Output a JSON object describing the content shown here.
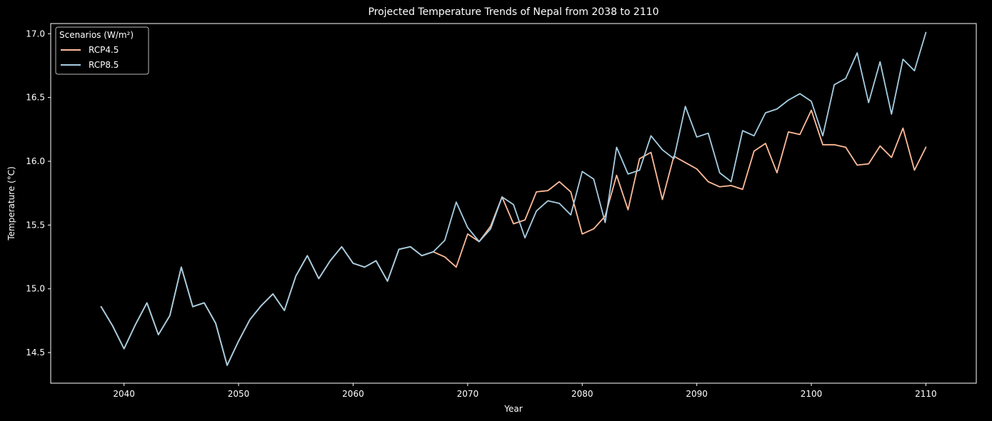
{
  "chart_data": {
    "type": "line",
    "title": "Projected Temperature Trends of Nepal from 2038 to 2110",
    "xlabel": "Year",
    "ylabel": "Temperature (°C)",
    "xlim": [
      2033.6,
      2114.4
    ],
    "ylim": [
      14.26,
      17.08
    ],
    "xticks": [
      2040,
      2050,
      2060,
      2070,
      2080,
      2090,
      2100,
      2110
    ],
    "xtick_labels": [
      "2040",
      "2050",
      "2060",
      "2070",
      "2080",
      "2090",
      "2100",
      "2110"
    ],
    "yticks": [
      14.5,
      15.0,
      15.5,
      16.0,
      16.5,
      17.0
    ],
    "ytick_labels": [
      "14.5",
      "15.0",
      "15.5",
      "16.0",
      "16.5",
      "17.0"
    ],
    "grid": false,
    "legend": {
      "title": "Scenarios (W/m²)",
      "placement": "top-left"
    },
    "background": "#000000",
    "x": [
      2038,
      2039,
      2040,
      2041,
      2042,
      2043,
      2044,
      2045,
      2046,
      2047,
      2048,
      2049,
      2050,
      2051,
      2052,
      2053,
      2054,
      2055,
      2056,
      2057,
      2058,
      2059,
      2060,
      2061,
      2062,
      2063,
      2064,
      2065,
      2066,
      2067,
      2068,
      2069,
      2070,
      2071,
      2072,
      2073,
      2074,
      2075,
      2076,
      2077,
      2078,
      2079,
      2080,
      2081,
      2082,
      2083,
      2084,
      2085,
      2086,
      2087,
      2088,
      2089,
      2090,
      2091,
      2092,
      2093,
      2094,
      2095,
      2096,
      2097,
      2098,
      2099,
      2100,
      2101,
      2102,
      2103,
      2104,
      2105,
      2106,
      2107,
      2108,
      2109,
      2110
    ],
    "series": [
      {
        "name": "RCP4.5",
        "color": "#ffbb99",
        "values": [
          14.86,
          14.71,
          14.53,
          14.72,
          14.89,
          14.64,
          14.79,
          15.17,
          14.86,
          14.89,
          14.73,
          14.4,
          14.59,
          14.76,
          14.87,
          14.96,
          14.83,
          15.1,
          15.26,
          15.08,
          15.22,
          15.33,
          15.2,
          15.17,
          15.22,
          15.06,
          15.31,
          15.33,
          15.26,
          15.29,
          15.25,
          15.17,
          15.43,
          15.37,
          15.49,
          15.72,
          15.51,
          15.54,
          15.76,
          15.77,
          15.84,
          15.76,
          15.43,
          15.47,
          15.57,
          15.89,
          15.62,
          16.02,
          16.07,
          15.7,
          16.04,
          15.99,
          15.94,
          15.84,
          15.8,
          15.81,
          15.78,
          16.08,
          16.14,
          15.91,
          16.23,
          16.21,
          16.4,
          16.13,
          16.13,
          16.11,
          15.97,
          15.98,
          16.12,
          16.03,
          16.26,
          15.93,
          16.11
        ]
      },
      {
        "name": "RCP8.5",
        "color": "#a6cee3",
        "values": [
          14.86,
          14.71,
          14.53,
          14.72,
          14.89,
          14.64,
          14.79,
          15.17,
          14.86,
          14.89,
          14.73,
          14.4,
          14.59,
          14.76,
          14.87,
          14.96,
          14.83,
          15.1,
          15.26,
          15.08,
          15.22,
          15.33,
          15.2,
          15.17,
          15.22,
          15.06,
          15.31,
          15.33,
          15.26,
          15.29,
          15.38,
          15.68,
          15.48,
          15.37,
          15.47,
          15.72,
          15.66,
          15.4,
          15.61,
          15.69,
          15.67,
          15.58,
          15.92,
          15.86,
          15.52,
          16.11,
          15.9,
          15.93,
          16.2,
          16.09,
          16.02,
          16.43,
          16.19,
          16.22,
          15.91,
          15.84,
          16.24,
          16.2,
          16.38,
          16.41,
          16.48,
          16.53,
          16.47,
          16.2,
          16.6,
          16.65,
          16.85,
          16.46,
          16.78,
          16.37,
          16.8,
          16.71,
          17.01
        ]
      }
    ]
  }
}
